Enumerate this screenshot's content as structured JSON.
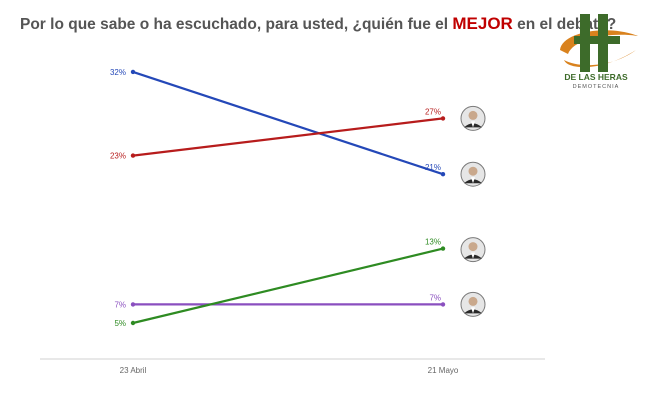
{
  "header": {
    "title_prefix": "Por lo que sabe o ha escuchado, para usted, ¿quién fue el ",
    "title_highlight": "MEJOR",
    "title_suffix": " en el debate?"
  },
  "logo": {
    "name": "DE LAS HERAS",
    "subname": "DEMOTECNIA",
    "colors": {
      "green": "#3d6b2a",
      "orange": "#d9821e"
    }
  },
  "chart_data": {
    "type": "line",
    "categories": [
      "23 Abril",
      "21 Mayo"
    ],
    "series": [
      {
        "values": [
          32,
          21
        ],
        "labels": [
          "32%",
          "21%"
        ],
        "color": "#2448b8",
        "avatar": "candidate-photo-icon"
      },
      {
        "values": [
          23,
          27
        ],
        "labels": [
          "23%",
          "27%"
        ],
        "color": "#b71c1c",
        "avatar": "candidate-photo-icon"
      },
      {
        "values": [
          5,
          13
        ],
        "labels": [
          "5%",
          "13%"
        ],
        "color": "#2e8b22",
        "avatar": "candidate-photo-icon"
      },
      {
        "values": [
          7,
          7
        ],
        "labels": [
          "7%",
          "7%"
        ],
        "color": "#8a4fbf",
        "avatar": "candidate-photo-icon"
      }
    ],
    "grid": false,
    "axis_color": "#d0d0d0"
  }
}
